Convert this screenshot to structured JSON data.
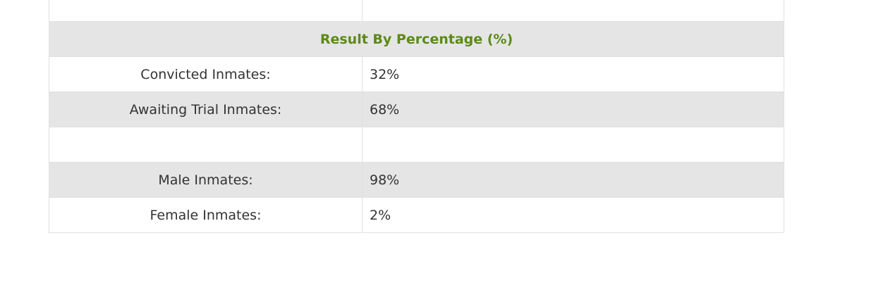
{
  "table": {
    "title": "Result By Percentage (%)",
    "rows": [
      [
        "Convicted Inmates:",
        "32%"
      ],
      [
        "Awaiting Trial Inmates:",
        "68%"
      ],
      [
        "Male Inmates:",
        "98%"
      ],
      [
        "Female Inmates:",
        "2%"
      ]
    ]
  }
}
